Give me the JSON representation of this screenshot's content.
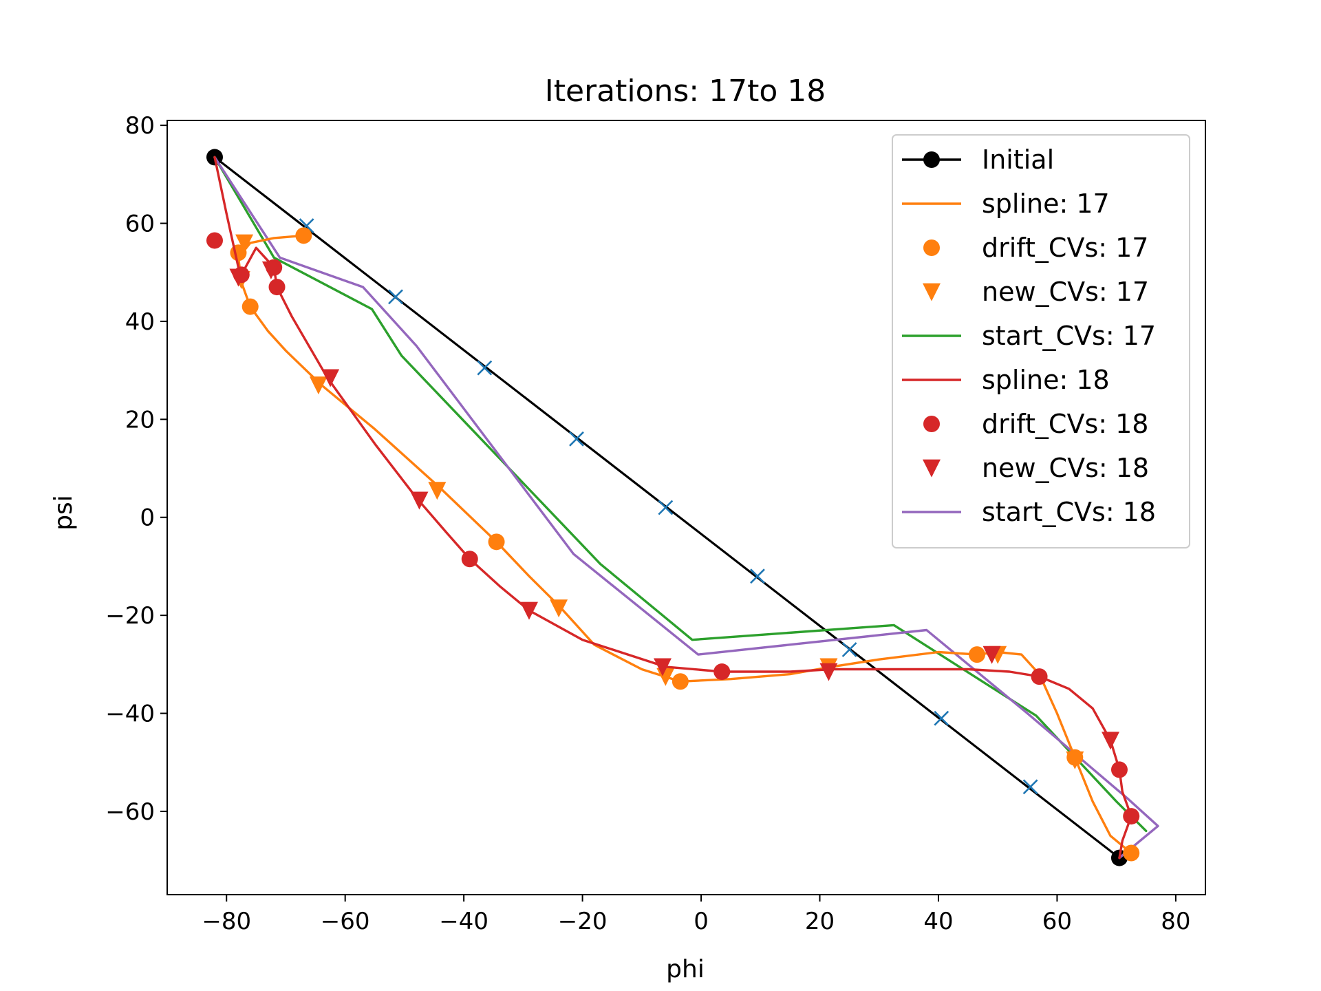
{
  "chart_data": {
    "type": "line",
    "title": "Iterations: 17to 18",
    "xlabel": "phi",
    "ylabel": "psi",
    "xlim": [
      -90,
      85
    ],
    "ylim": [
      -77,
      81
    ],
    "xticks": [
      -80,
      -60,
      -40,
      -20,
      0,
      20,
      40,
      60,
      80
    ],
    "yticks": [
      -60,
      -40,
      -20,
      0,
      20,
      40,
      60,
      80
    ],
    "xtick_labels": [
      "−80",
      "−60",
      "−40",
      "−20",
      "0",
      "20",
      "40",
      "60",
      "80"
    ],
    "ytick_labels": [
      "−60",
      "−40",
      "−20",
      "0",
      "20",
      "40",
      "60",
      "80"
    ],
    "grid": false,
    "legend_placement": "top-right",
    "series": [
      {
        "name": "Initial",
        "kind": "line",
        "color": "#000000",
        "x": [
          -82,
          70.5
        ],
        "y": [
          73.5,
          -69.5
        ],
        "endpoint_marker": "circle"
      },
      {
        "name": "spline: 17",
        "kind": "line",
        "color": "#ff7f0e",
        "x": [
          -67,
          -72,
          -76,
          -78,
          -77.5,
          -76,
          -73,
          -70,
          -64,
          -55,
          -44,
          -34.5,
          -29,
          -24,
          -18,
          -10,
          -3.5,
          5,
          15,
          22,
          30,
          40,
          46.5,
          50,
          54,
          57,
          60,
          63,
          66,
          69,
          72.5
        ],
        "y": [
          57.5,
          57,
          56,
          53,
          48,
          43,
          38,
          34,
          27,
          18,
          6,
          -5,
          -12,
          -18,
          -26,
          -31,
          -33.5,
          -33,
          -32,
          -30.5,
          -29,
          -27.5,
          -28,
          -27.5,
          -28,
          -32,
          -40,
          -49,
          -58,
          -65,
          -68.5
        ]
      },
      {
        "name": "drift_CVs: 17",
        "kind": "marker",
        "marker": "circle",
        "color": "#ff7f0e",
        "x": [
          -67,
          -78,
          -76,
          -34.5,
          -3.5,
          46.5,
          63,
          72.5
        ],
        "y": [
          57.5,
          54,
          43,
          -5,
          -33.5,
          -28,
          -49,
          -68.5
        ]
      },
      {
        "name": "new_CVs: 17",
        "kind": "marker",
        "marker": "triangle-down",
        "color": "#ff7f0e",
        "x": [
          -77,
          -77.5,
          -64.5,
          -44.5,
          -24,
          -6,
          21.5,
          50,
          63
        ],
        "y": [
          56,
          48.5,
          27,
          5.5,
          -18.5,
          -32.5,
          -30.5,
          -28,
          -49.5
        ]
      },
      {
        "name": "start_CVs: 17",
        "kind": "line",
        "color": "#2ca02c",
        "x": [
          -82,
          -72,
          -55.5,
          -50.5,
          -17,
          -1.5,
          32.5,
          56.5,
          70,
          75
        ],
        "y": [
          73.5,
          53,
          42.5,
          33,
          -9.5,
          -25,
          -22,
          -40.5,
          -58,
          -64
        ]
      },
      {
        "name": "spline: 18",
        "kind": "line",
        "color": "#d62728",
        "x": [
          -82,
          -80,
          -78,
          -77.5,
          -75,
          -72,
          -71.5,
          -69,
          -63,
          -55,
          -48,
          -43,
          -39,
          -34,
          -29,
          -20,
          -6,
          3.5,
          15,
          22,
          35,
          45,
          52,
          57,
          62,
          66,
          69,
          70.5,
          71,
          72.5,
          71,
          70.5
        ],
        "y": [
          73.5,
          62,
          51,
          49.5,
          55,
          51,
          47,
          41,
          28.5,
          15,
          4,
          -3,
          -8.5,
          -14,
          -19,
          -25,
          -30.5,
          -31.5,
          -31.5,
          -31,
          -31,
          -31,
          -31.5,
          -32.5,
          -35,
          -39,
          -45.5,
          -51.5,
          -56,
          -61,
          -66,
          -69.5
        ]
      },
      {
        "name": "drift_CVs: 18",
        "kind": "marker",
        "marker": "circle",
        "color": "#d62728",
        "x": [
          -82,
          -77.5,
          -72,
          -71.5,
          -39,
          3.5,
          57,
          70.5,
          72.5
        ],
        "y": [
          56.5,
          49.5,
          51,
          47,
          -8.5,
          -31.5,
          -32.5,
          -51.5,
          -61
        ]
      },
      {
        "name": "new_CVs: 18",
        "kind": "marker",
        "marker": "triangle-down",
        "color": "#d62728",
        "x": [
          -78,
          -72.5,
          -62.5,
          -47.5,
          -29,
          -6.5,
          21.5,
          49,
          69
        ],
        "y": [
          49,
          50.5,
          28.5,
          3.5,
          -19,
          -30.5,
          -31.5,
          -28,
          -45.5
        ]
      },
      {
        "name": "start_CVs: 18",
        "kind": "line",
        "color": "#9467bd",
        "x": [
          -82,
          -71,
          -57,
          -48,
          -21.5,
          -0.5,
          38,
          55,
          72,
          77,
          70.5
        ],
        "y": [
          73.5,
          53,
          47,
          35,
          -7.5,
          -28,
          -23,
          -40,
          -57.5,
          -63,
          -69.5
        ]
      },
      {
        "kind": "marker",
        "marker": "x",
        "color": "#1f77b4",
        "x": [
          -66.5,
          -51.5,
          -36.5,
          -21,
          -6,
          9.5,
          25,
          40.5,
          55.5
        ],
        "y": [
          59.5,
          45,
          30.5,
          16,
          2,
          -12,
          -27,
          -41,
          -55
        ]
      }
    ]
  }
}
